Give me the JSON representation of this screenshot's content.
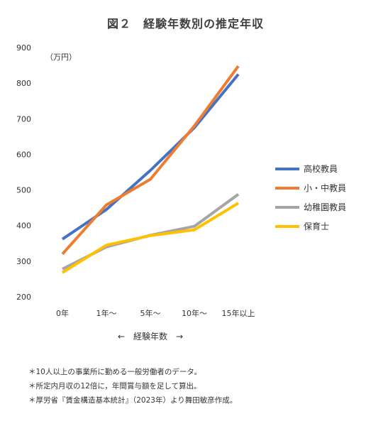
{
  "chart_data": {
    "type": "line",
    "title": "図２　経験年数別の推定年収",
    "unit_label": "（万円）",
    "xlabel": "←　経験年数　→",
    "ylabel": "",
    "categories": [
      "0年",
      "1年～",
      "5年～",
      "10年～",
      "15年以上"
    ],
    "ylim": [
      200,
      900
    ],
    "yticks": [
      200,
      300,
      400,
      500,
      600,
      700,
      800,
      900
    ],
    "grid": false,
    "legend_position": "right",
    "series": [
      {
        "name": "高校教員",
        "color": "#4472C4",
        "values": [
          362,
          445,
          555,
          675,
          825
        ]
      },
      {
        "name": "小・中教員",
        "color": "#ED7D31",
        "values": [
          320,
          458,
          530,
          680,
          848
        ]
      },
      {
        "name": "幼稚園教員",
        "color": "#A5A5A5",
        "values": [
          278,
          340,
          373,
          398,
          488
        ]
      },
      {
        "name": "保育士",
        "color": "#FFC000",
        "values": [
          268,
          345,
          372,
          388,
          463
        ]
      }
    ]
  },
  "notes": [
    "＊10人以上の事業所に勤める一般労働者のデータ。",
    "＊所定内月収の12倍に，年間賞与額を足して算出。",
    "＊厚労省『賃金構造基本統計』（2023年）より舞田敏彦作成。"
  ]
}
